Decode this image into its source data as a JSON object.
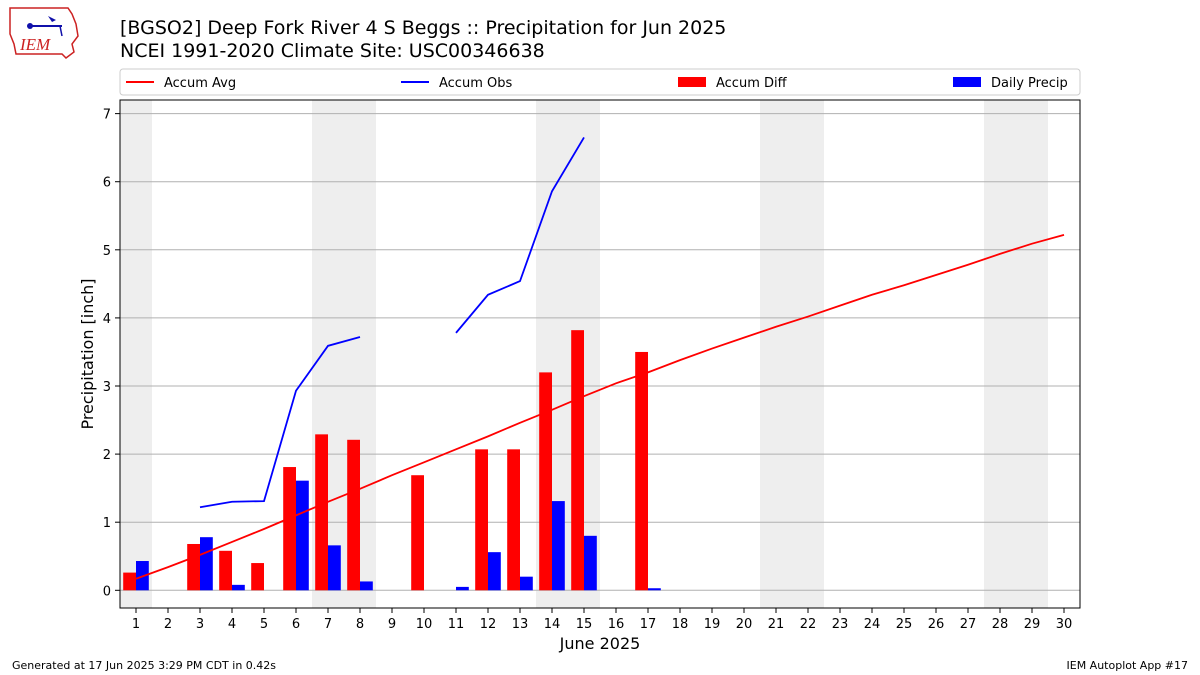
{
  "header": {
    "title": "[BGSO2] Deep Fork River 4 S Beggs :: Precipitation for Jun 2025",
    "subtitle": "NCEI 1991-2020 Climate Site: USC00346638",
    "logo_text": "IEM"
  },
  "footer": {
    "generated": "Generated at 17 Jun 2025 3:29 PM CDT in 0.42s",
    "app": "IEM Autoplot App #17"
  },
  "chart_data": {
    "type": "bar",
    "xlabel": "June 2025",
    "ylabel": "Precipitation [inch]",
    "x": [
      1,
      2,
      3,
      4,
      5,
      6,
      7,
      8,
      9,
      10,
      11,
      12,
      13,
      14,
      15,
      16,
      17,
      18,
      19,
      20,
      21,
      22,
      23,
      24,
      25,
      26,
      27,
      28,
      29,
      30
    ],
    "xlim": [
      0.5,
      30.5
    ],
    "ylim": [
      -0.26,
      7.2
    ],
    "yticks": [
      0,
      1,
      2,
      3,
      4,
      5,
      6,
      7
    ],
    "grid": "horizontal",
    "weekend_shading": [
      [
        0.5,
        1.5
      ],
      [
        6.5,
        8.5
      ],
      [
        13.5,
        15.5
      ],
      [
        20.5,
        22.5
      ],
      [
        27.5,
        29.5
      ]
    ],
    "legend_position": "top",
    "colors": {
      "accum_avg": "#ff0000",
      "accum_obs": "#0000ff",
      "accum_diff": "#ff0000",
      "daily_precip": "#0000ff",
      "shade": "#eeeeee",
      "grid": "#b0b0b0"
    },
    "legend": [
      "Accum Avg",
      "Accum Obs",
      "Accum Diff",
      "Daily Precip"
    ],
    "series": [
      {
        "name": "Accum Avg",
        "kind": "line",
        "color": "#ff0000",
        "values": [
          0.17,
          0.34,
          0.52,
          0.71,
          0.9,
          1.1,
          1.3,
          1.49,
          1.69,
          1.88,
          2.07,
          2.26,
          2.46,
          2.65,
          2.85,
          3.04,
          3.2,
          3.38,
          3.55,
          3.71,
          3.87,
          4.02,
          4.18,
          4.34,
          4.48,
          4.63,
          4.78,
          4.94,
          5.09,
          5.22
        ]
      },
      {
        "name": "Accum Obs",
        "kind": "line",
        "color": "#0000ff",
        "values": [
          null,
          null,
          1.22,
          1.3,
          1.31,
          2.93,
          3.59,
          3.72,
          null,
          null,
          3.78,
          4.34,
          4.54,
          5.86,
          6.65,
          null,
          null,
          null,
          null,
          null,
          null,
          null,
          null,
          null,
          null,
          null,
          null,
          null,
          null,
          null
        ]
      },
      {
        "name": "Accum Diff",
        "kind": "bar",
        "color": "#ff0000",
        "values": [
          0.26,
          null,
          0.68,
          0.58,
          0.4,
          1.81,
          2.29,
          2.21,
          null,
          1.69,
          null,
          2.07,
          2.07,
          3.2,
          3.82,
          null,
          3.5,
          null,
          null,
          null,
          null,
          null,
          null,
          null,
          null,
          null,
          null,
          null,
          null,
          null
        ]
      },
      {
        "name": "Daily Precip",
        "kind": "bar",
        "color": "#0000ff",
        "values": [
          0.43,
          null,
          0.78,
          0.08,
          null,
          1.61,
          0.66,
          0.13,
          null,
          null,
          0.05,
          0.56,
          0.2,
          1.31,
          0.8,
          null,
          0.03,
          null,
          null,
          null,
          null,
          null,
          null,
          null,
          null,
          null,
          null,
          null,
          null,
          null
        ]
      }
    ]
  }
}
